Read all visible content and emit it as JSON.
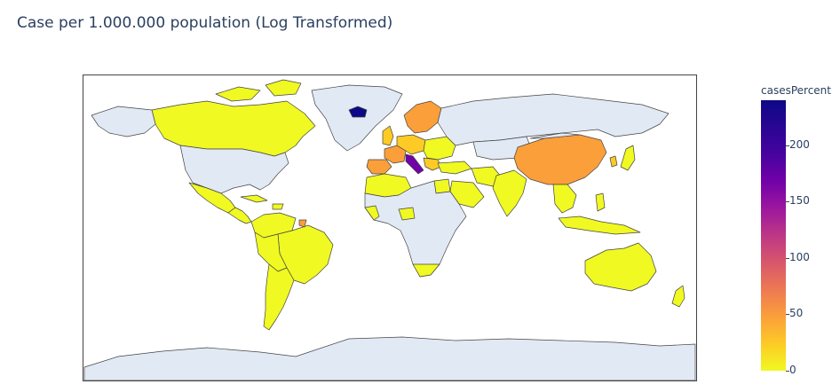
{
  "title": "Case per 1.000.000 population (Log Transformed)",
  "colorbar": {
    "title": "casesPercent",
    "ticks": [
      "0",
      "50",
      "100",
      "150",
      "200"
    ],
    "tick_values": [
      0,
      50,
      100,
      150,
      200
    ],
    "max": 240,
    "colorscale": "plasma-reversed"
  },
  "map_colors": {
    "land_no_data": "#e1e9f4",
    "low": "#f0f921",
    "mid_low": "#fdca26",
    "mid": "#fb9f3a",
    "high": "#7201a8",
    "max": "#0d0887",
    "border": "#444444"
  }
}
